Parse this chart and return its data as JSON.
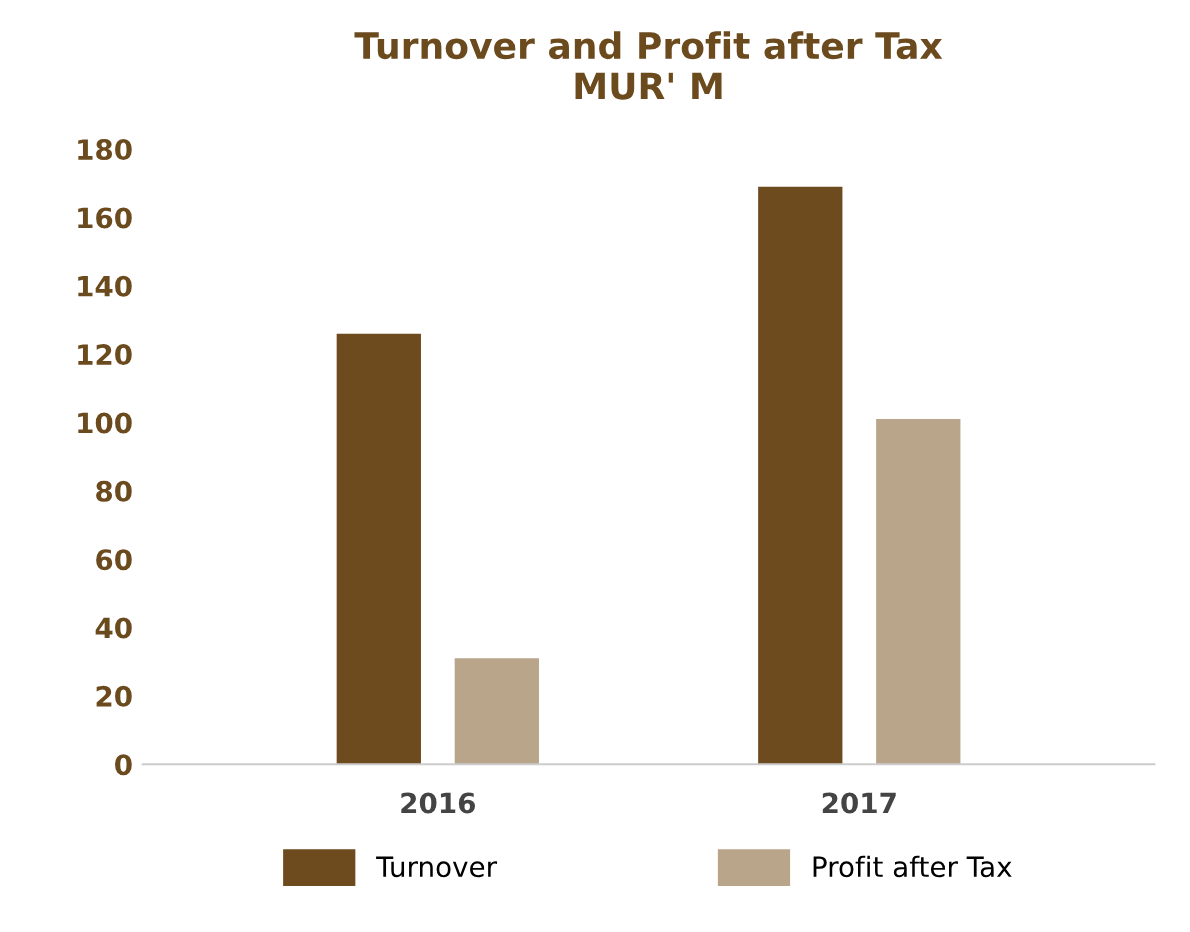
{
  "chart_data": {
    "type": "bar",
    "title": "Turnover and Profit after Tax\nMUR' M",
    "categories": [
      "2016",
      "2017"
    ],
    "series": [
      {
        "name": "Turnover",
        "color": "#6e4b1f",
        "values": [
          126,
          169
        ]
      },
      {
        "name": "Profit after Tax",
        "color": "#b9a58a",
        "values": [
          31,
          101
        ]
      }
    ],
    "ylim": [
      0,
      180
    ],
    "yticks": [
      0,
      20,
      40,
      60,
      80,
      100,
      120,
      140,
      160,
      180
    ],
    "grid": false,
    "legend": "bottom"
  }
}
